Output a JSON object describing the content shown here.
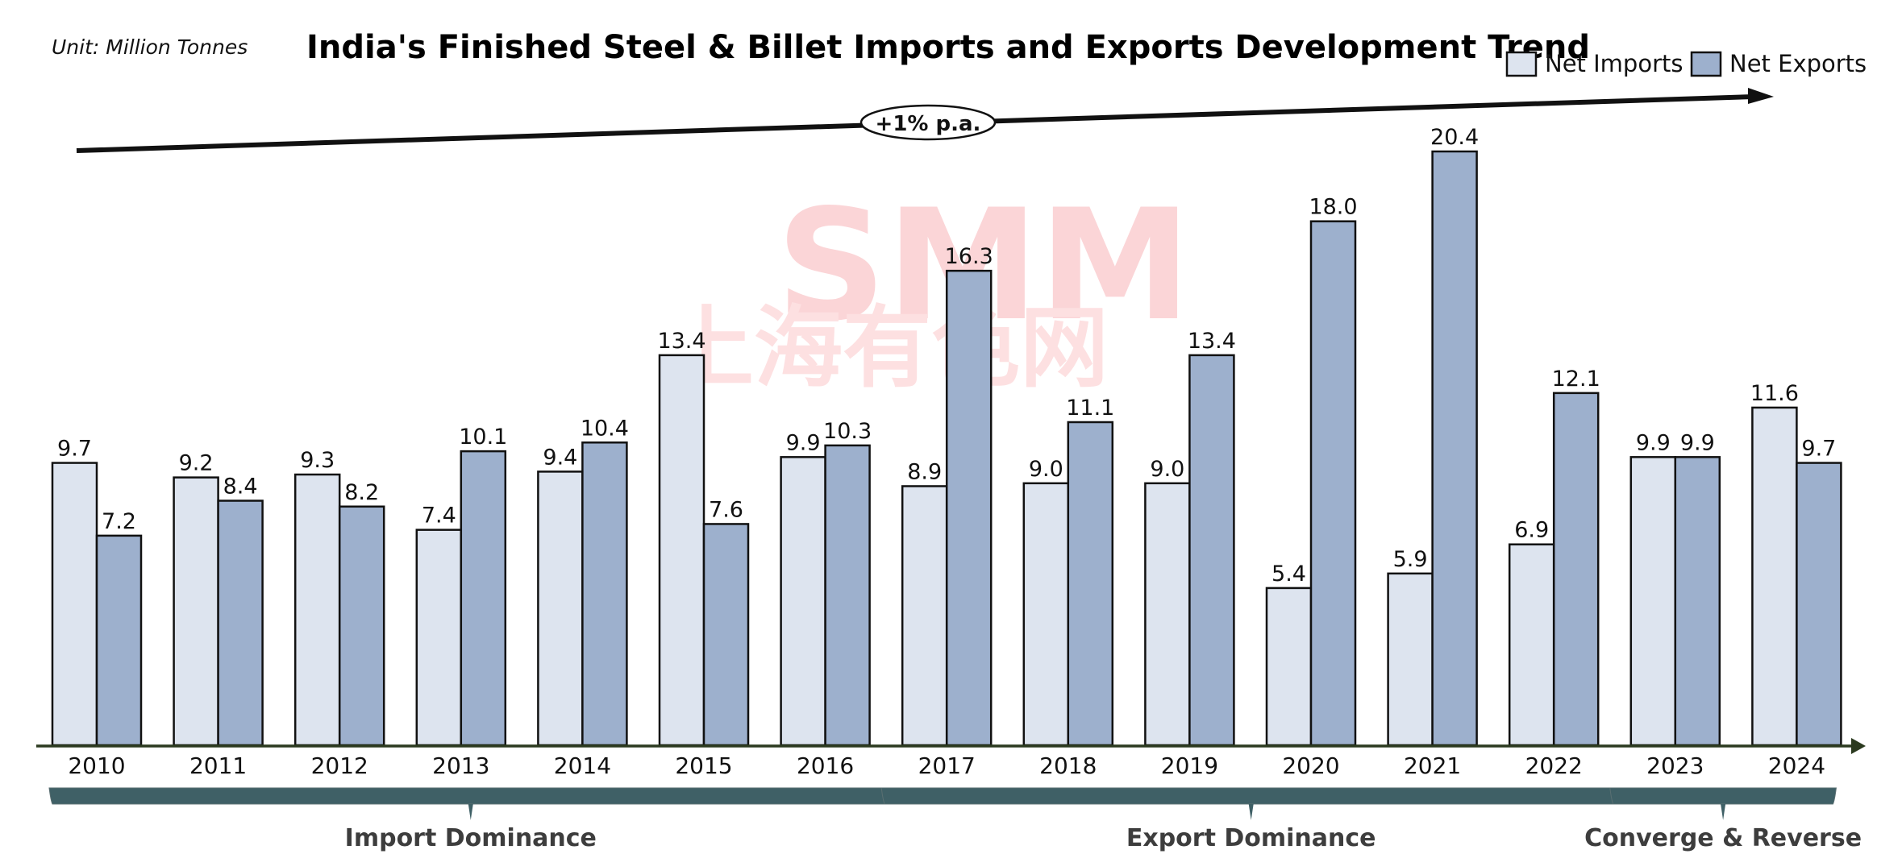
{
  "chart_data": {
    "type": "bar",
    "title": "India's Finished Steel & Billet Imports and Exports Development Trend",
    "unit_label": "Unit:  Million Tonnes",
    "xlabel": "",
    "ylabel": "",
    "ylim": [
      0,
      20.4
    ],
    "grid": false,
    "legend_position": "top-right",
    "categories": [
      "2010",
      "2011",
      "2012",
      "2013",
      "2014",
      "2015",
      "2016",
      "2017",
      "2018",
      "2019",
      "2020",
      "2021",
      "2022",
      "2023",
      "2024"
    ],
    "series": [
      {
        "name": "Net Imports",
        "color": "#dde4ef",
        "values": [
          9.7,
          9.2,
          9.3,
          7.4,
          9.4,
          13.4,
          9.9,
          8.9,
          9.0,
          9.0,
          5.4,
          5.9,
          6.9,
          9.9,
          11.6
        ],
        "labels": [
          "9.7",
          "9.2",
          "9.3",
          "7.4",
          "9.4",
          "13.4",
          "9.9",
          "8.9",
          "9.0",
          "9.0",
          "5.4",
          "5.9",
          "6.9",
          "9.9",
          "11.6"
        ]
      },
      {
        "name": "Net Exports",
        "color": "#9db0cd",
        "values": [
          7.2,
          8.4,
          8.2,
          10.1,
          10.4,
          7.6,
          10.3,
          16.3,
          11.1,
          13.4,
          18.0,
          20.4,
          12.1,
          9.9,
          9.7
        ],
        "labels": [
          "7.2",
          "8.4",
          "8.2",
          "10.1",
          "10.4",
          "7.6",
          "10.3",
          "16.3",
          "11.1",
          "13.4",
          "18.0",
          "20.4",
          "12.1",
          "9.9",
          "9.7"
        ]
      }
    ],
    "annotations": {
      "trend_label": "+1% p.a.",
      "phases": [
        {
          "label": "Import Dominance",
          "from": "2010",
          "to": "2016"
        },
        {
          "label": "Export Dominance",
          "from": "2017",
          "to": "2022"
        },
        {
          "label": "Converge & Reverse",
          "from": "2023",
          "to": "2024"
        }
      ]
    },
    "watermark": {
      "latin": "SMM",
      "cjk": "上海有色网"
    }
  },
  "colors": {
    "bar_outline": "#111111",
    "axis": "#2b3a1f",
    "phase_bracket": "#3f6066",
    "trend_arrow": "#111111"
  }
}
